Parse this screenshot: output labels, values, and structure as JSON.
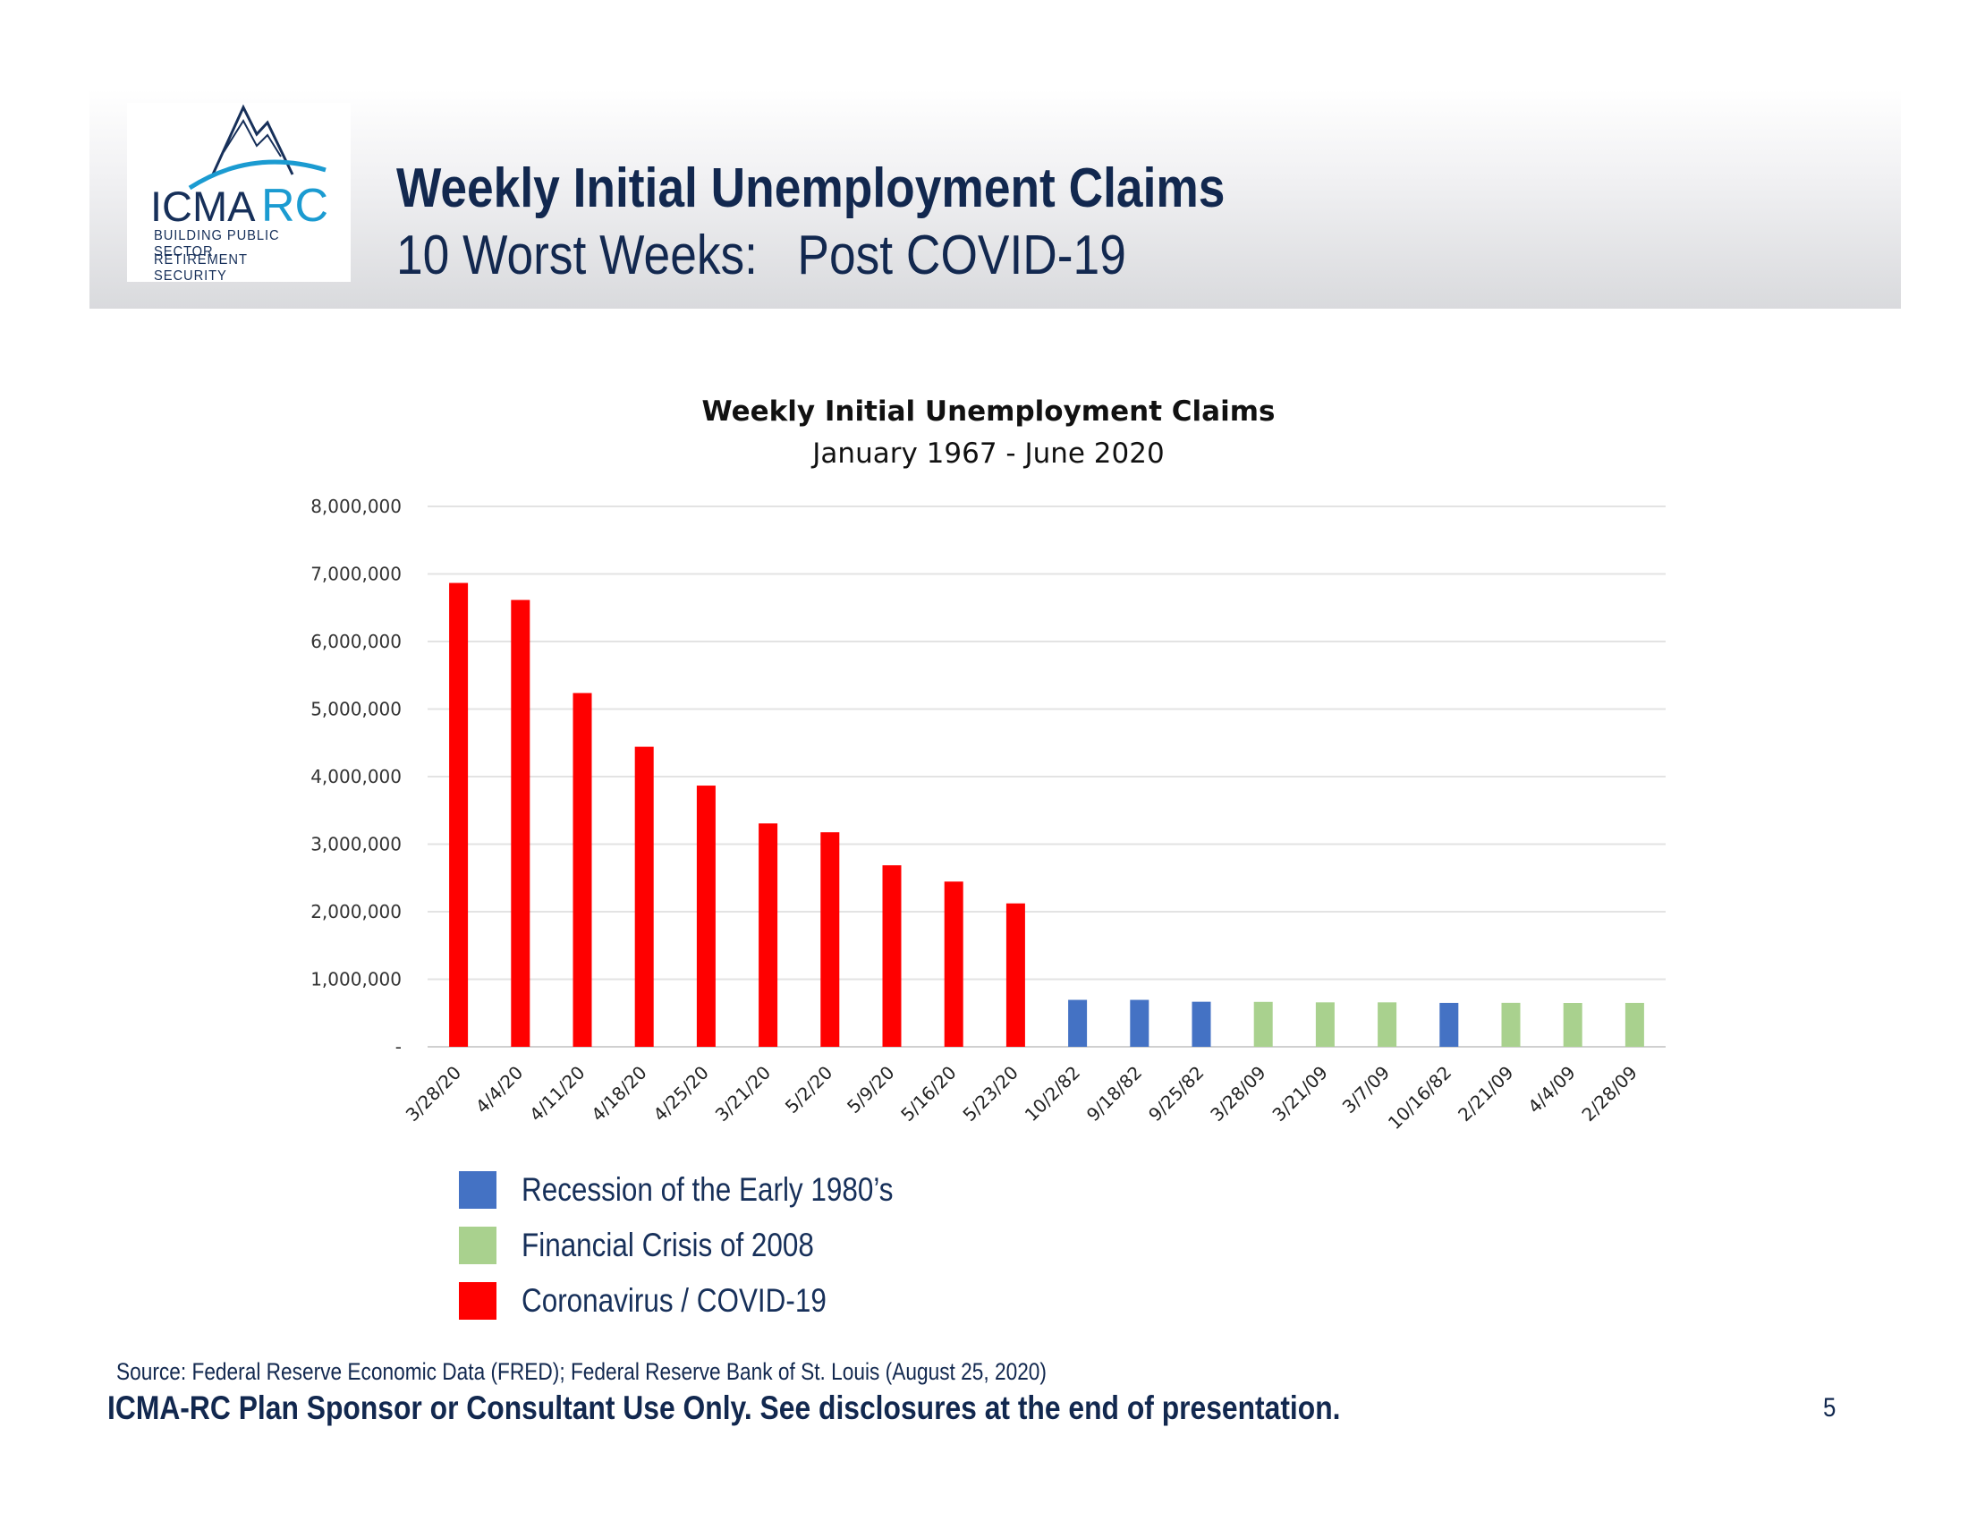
{
  "header": {
    "title": "Weekly Initial Unemployment Claims",
    "subtitle": "10 Worst Weeks:   Post COVID-19",
    "logo": {
      "wordmark_part1": "ICMA",
      "wordmark_part2": "RC",
      "tagline_line1": "BUILDING PUBLIC SECTOR",
      "tagline_line2": "RETIREMENT SECURITY"
    }
  },
  "chart_data": {
    "type": "bar",
    "title": "Weekly Initial Unemployment Claims",
    "subtitle": "January 1967 - June 2020",
    "xlabel": "",
    "ylabel": "",
    "ylim": [
      0,
      8000000
    ],
    "grid": true,
    "y_ticks": [
      0,
      1000000,
      2000000,
      3000000,
      4000000,
      5000000,
      6000000,
      7000000,
      8000000
    ],
    "y_tick_labels": [
      "-",
      "1,000,000",
      "2,000,000",
      "3,000,000",
      "4,000,000",
      "5,000,000",
      "6,000,000",
      "7,000,000",
      "8,000,000"
    ],
    "categories": [
      "3/28/20",
      "4/4/20",
      "4/11/20",
      "4/18/20",
      "4/25/20",
      "3/21/20",
      "5/2/20",
      "5/9/20",
      "5/16/20",
      "5/23/20",
      "10/2/82",
      "9/18/82",
      "9/25/82",
      "3/28/09",
      "3/21/09",
      "3/7/09",
      "10/16/82",
      "2/21/09",
      "4/4/09",
      "2/28/09"
    ],
    "values": [
      6867000,
      6615000,
      5237000,
      4442000,
      3867000,
      3307000,
      3176000,
      2687000,
      2446000,
      2123000,
      695000,
      695000,
      667000,
      665000,
      658000,
      658000,
      650000,
      651000,
      649000,
      650000
    ],
    "groups": [
      "covid",
      "covid",
      "covid",
      "covid",
      "covid",
      "covid",
      "covid",
      "covid",
      "covid",
      "covid",
      "recession",
      "recession",
      "recession",
      "crisis",
      "crisis",
      "crisis",
      "recession",
      "crisis",
      "crisis",
      "crisis"
    ],
    "colors": {
      "recession": "#4472c4",
      "crisis": "#a9d18e",
      "covid": "#ff0000"
    },
    "legend_placement": "bottom-left",
    "legend": [
      {
        "group": "recession",
        "label": "Recession of the Early 1980’s"
      },
      {
        "group": "crisis",
        "label": "Financial Crisis of 2008"
      },
      {
        "group": "covid",
        "label": "Coronavirus / COVID-19"
      }
    ]
  },
  "footer": {
    "source": "Source: Federal Reserve Economic Data (FRED);  Federal Reserve Bank of St. Louis (August 25, 2020)",
    "disclaimer": "ICMA-RC Plan Sponsor or Consultant Use Only.  See disclosures at the end of presentation.",
    "page_number": "5"
  },
  "colors": {
    "navy": "#12284f",
    "logo_blue": "#1b9bd1"
  }
}
